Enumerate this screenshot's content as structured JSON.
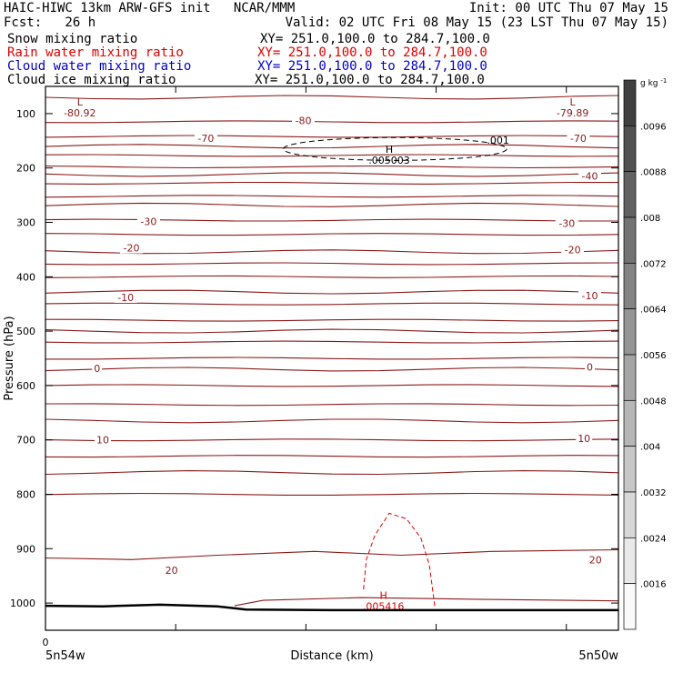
{
  "header": {
    "line1_left": "HAIC-HIWC 13km ARW-GFS init   NCAR/MMM",
    "line1_right": "Init: 00 UTC Thu 07 May 15",
    "line2_left": "Fcst:   26 h",
    "line2_right": "Valid: 02 UTC Fri 08 May 15 (23 LST Thu 07 May 15)",
    "fields": [
      {
        "name": "Snow mixing ratio",
        "xy": "XY= 251.0,100.0 to 284.7,100.0",
        "color": "#000000"
      },
      {
        "name": "Rain water mixing ratio",
        "xy": "XY= 251.0,100.0 to 284.7,100.0",
        "color": "#e00000"
      },
      {
        "name": "Cloud water mixing ratio",
        "xy": "XY= 251.0,100.0 to 284.7,100.0",
        "color": "#0000cc"
      },
      {
        "name": "Cloud ice mixing ratio",
        "xy": "XY= 251.0,100.0 to 284.7,100.0",
        "color": "#000000"
      }
    ]
  },
  "chart_data": {
    "type": "line",
    "description_kind": "vertical cross-section",
    "xlabel": "Distance (km)",
    "ylabel": "Pressure (hPa)",
    "x_tick_zero": "0",
    "x_left_label": "5n54w",
    "x_right_label": "5n50w",
    "y_ticks": [
      100,
      200,
      300,
      400,
      500,
      600,
      700,
      800,
      900,
      1000
    ],
    "y_range": [
      50,
      1050
    ],
    "y_scale": "linear-descending",
    "colorbar": {
      "unit": "g kg",
      "unit_sup": "-1",
      "labels": [
        ".0096",
        ".0088",
        ".008",
        ".0072",
        ".0064",
        ".0056",
        ".0048",
        ".004",
        ".0032",
        ".0024",
        ".0016"
      ]
    },
    "temperature_contours": {
      "color": "#8b1a1a",
      "levels_hpa": [
        70,
        115,
        142,
        160,
        177,
        198,
        212,
        228,
        252,
        268,
        296,
        322,
        354,
        376,
        400,
        428,
        450,
        480,
        500,
        520,
        550,
        570,
        600,
        635,
        665,
        700,
        730,
        760,
        800
      ],
      "labels": [
        {
          "text": "-80",
          "x_frac": 0.45,
          "p": 113
        },
        {
          "text": "-70",
          "x_frac": 0.28,
          "p": 145
        },
        {
          "text": "-70",
          "x_frac": 0.93,
          "p": 145
        },
        {
          "text": "-40",
          "x_frac": 0.95,
          "p": 215
        },
        {
          "text": "-30",
          "x_frac": 0.18,
          "p": 298
        },
        {
          "text": "-30",
          "x_frac": 0.91,
          "p": 302
        },
        {
          "text": "-20",
          "x_frac": 0.15,
          "p": 347
        },
        {
          "text": "-20",
          "x_frac": 0.92,
          "p": 350
        },
        {
          "text": "-10",
          "x_frac": 0.14,
          "p": 438
        },
        {
          "text": "-10",
          "x_frac": 0.95,
          "p": 435
        },
        {
          "text": "0",
          "x_frac": 0.09,
          "p": 568
        },
        {
          "text": "0",
          "x_frac": 0.95,
          "p": 566
        },
        {
          "text": "10",
          "x_frac": 0.1,
          "p": 700
        },
        {
          "text": "10",
          "x_frac": 0.94,
          "p": 697
        },
        {
          "text": "20",
          "x_frac": 0.22,
          "p": 940
        },
        {
          "text": "20",
          "x_frac": 0.96,
          "p": 920
        }
      ]
    },
    "extrema": [
      {
        "mark": "L",
        "value": "-80.92",
        "x_frac": 0.06,
        "p": 85,
        "color": "#8b1a1a"
      },
      {
        "mark": "L",
        "value": "-79.89",
        "x_frac": 0.92,
        "p": 85,
        "color": "#8b1a1a"
      },
      {
        "mark": "H",
        "value": ".005003",
        "x_frac": 0.6,
        "p": 172,
        "color": "#000000"
      },
      {
        "mark": "H",
        "value": ".005416",
        "x_frac": 0.59,
        "p": 992,
        "color": "#e00000"
      }
    ],
    "ice_contour_label": ".001",
    "ground_surface_hpa": [
      [
        0,
        1005
      ],
      [
        0.1,
        1006
      ],
      [
        0.2,
        1003
      ],
      [
        0.3,
        1006
      ],
      [
        0.35,
        1012
      ],
      [
        0.5,
        1013
      ],
      [
        0.7,
        1013
      ],
      [
        1.0,
        1013
      ]
    ]
  }
}
